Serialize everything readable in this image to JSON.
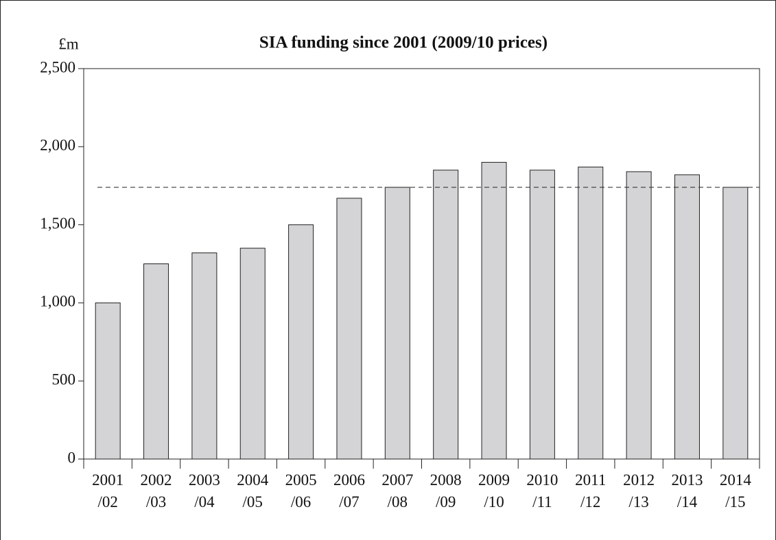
{
  "chart_data": {
    "type": "bar",
    "title": "SIA funding since 2001 (2009/10 prices)",
    "y_label": "£m",
    "categories": [
      [
        "2001",
        "/02"
      ],
      [
        "2002",
        "/03"
      ],
      [
        "2003",
        "/04"
      ],
      [
        "2004",
        "/05"
      ],
      [
        "2005",
        "/06"
      ],
      [
        "2006",
        "/07"
      ],
      [
        "2007",
        "/08"
      ],
      [
        "2008",
        "/09"
      ],
      [
        "2009",
        "/10"
      ],
      [
        "2010",
        "/11"
      ],
      [
        "2011",
        "/12"
      ],
      [
        "2012",
        "/13"
      ],
      [
        "2013",
        "/14"
      ],
      [
        "2014",
        "/15"
      ]
    ],
    "values": [
      1000,
      1250,
      1320,
      1350,
      1500,
      1670,
      1740,
      1850,
      1900,
      1850,
      1870,
      1840,
      1820,
      1740
    ],
    "color": "#d4d4d6",
    "reference_line": 1740,
    "ylim": [
      0,
      2500
    ],
    "yticks": [
      0,
      500,
      {
        "value": 1000,
        "label": "1,000"
      },
      {
        "value": 1500,
        "label": "1,500"
      },
      {
        "value": 2000,
        "label": "2,000"
      },
      {
        "value": 2500,
        "label": "2,500"
      }
    ],
    "grid": false
  }
}
